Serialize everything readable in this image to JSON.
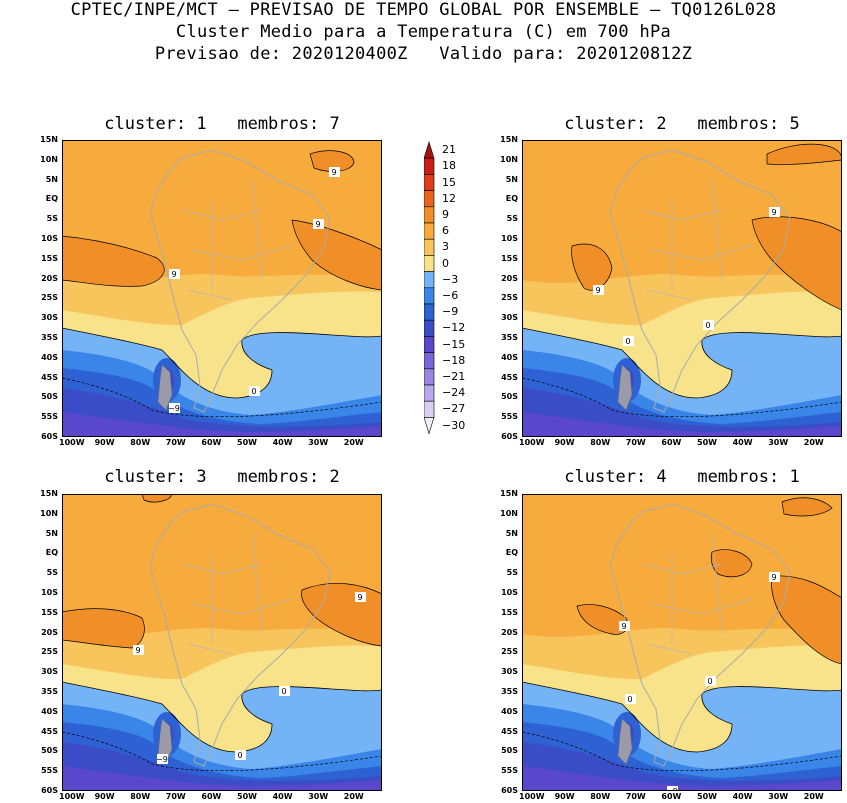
{
  "header": {
    "line1": "CPTEC/INPE/MCT – PREVISAO DE TEMPO GLOBAL POR ENSEMBLE – TQ0126L028",
    "line2": "Cluster Medio para a Temperatura (C) em 700 hPa",
    "line3": "Previsao de: 2020120400Z   Valido para: 2020120812Z"
  },
  "colors": {
    "c_m30": "#f0eefa",
    "c_m27": "#d8cff2",
    "c_m24": "#b9a8eb",
    "c_m21": "#9b86e0",
    "c_m18": "#7a66d6",
    "c_m15": "#5a48cc",
    "c_m12": "#3b4dc6",
    "c_m9": "#2e62d4",
    "c_m6": "#3a86e8",
    "c_m3": "#74b3f5",
    "c_0": "#f8e38a",
    "c_3": "#f8c55c",
    "c_6": "#f7ab3d",
    "c_9": "#f08f27",
    "c_12": "#e8641e",
    "c_15": "#de3c1a",
    "c_18": "#c81f18",
    "c_21": "#a51212"
  },
  "axes": {
    "lat_ticks": [
      "15N",
      "10N",
      "5N",
      "EQ",
      "5S",
      "10S",
      "15S",
      "20S",
      "25S",
      "30S",
      "35S",
      "40S",
      "45S",
      "50S",
      "55S",
      "60S"
    ],
    "lon_ticks": [
      "100W",
      "90W",
      "80W",
      "70W",
      "60W",
      "50W",
      "40W",
      "30W",
      "20W"
    ]
  },
  "legend": {
    "labels": [
      "21",
      "18",
      "15",
      "12",
      "9",
      "6",
      "3",
      "0",
      "−3",
      "−6",
      "−9",
      "−12",
      "−15",
      "−18",
      "−21",
      "−24",
      "−27",
      "−30"
    ]
  },
  "panels": [
    {
      "title": "cluster: 1   membros: 7",
      "contour_labels": [
        "9",
        "9",
        "9",
        "0",
        "−9"
      ]
    },
    {
      "title": "cluster: 2   membros: 5",
      "contour_labels": [
        "9",
        "9",
        "0",
        "0"
      ]
    },
    {
      "title": "cluster: 3   membros: 2",
      "contour_labels": [
        "9",
        "9",
        "0",
        "0",
        "−9"
      ]
    },
    {
      "title": "cluster: 4   membros: 1",
      "contour_labels": [
        "9",
        "9",
        "0",
        "0",
        "−9"
      ]
    }
  ]
}
